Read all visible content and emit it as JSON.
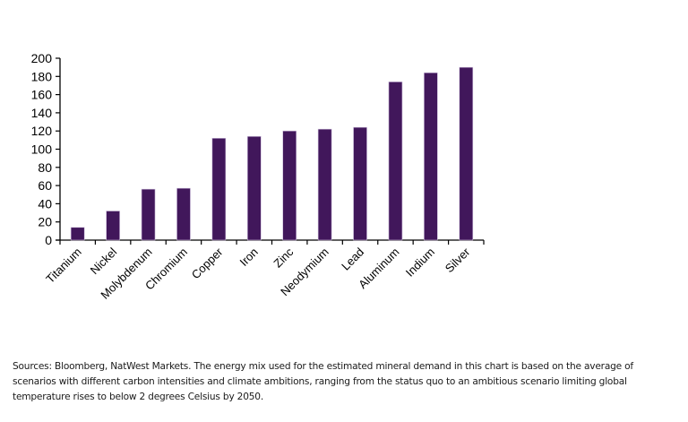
{
  "chart_data": {
    "type": "bar",
    "title": "",
    "xlabel": "",
    "ylabel": "",
    "categories": [
      "Titanium",
      "Nickel",
      "Molybdenum",
      "Chromium",
      "Copper",
      "Iron",
      "Zinc",
      "Neodymium",
      "Lead",
      "Aluminum",
      "Indium",
      "Silver"
    ],
    "values": [
      14,
      32,
      56,
      57,
      112,
      114,
      120,
      122,
      124,
      174,
      184,
      190
    ],
    "ylim": [
      0,
      200
    ],
    "yticks": [
      0,
      20,
      40,
      60,
      80,
      100,
      120,
      140,
      160,
      180,
      200
    ],
    "grid": false,
    "legend": "none",
    "bar_color": "#41175b"
  },
  "caption": "Sources: Bloomberg, NatWest Markets. The energy mix used for the estimated mineral demand in this chart is based on the average of scenarios with different carbon intensities and climate ambitions, ranging from the status quo to an ambitious scenario limiting global temperature rises to below 2 degrees Celsius by 2050."
}
